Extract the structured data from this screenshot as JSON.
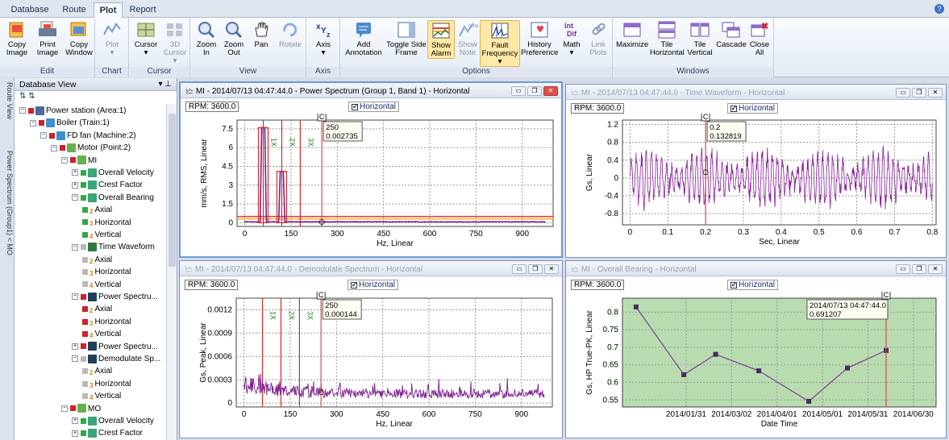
{
  "menu": {
    "tabs": [
      "Database",
      "Route",
      "Plot",
      "Report"
    ],
    "active": "Plot"
  },
  "ribbon": {
    "edit": {
      "label": "Edit",
      "buttons": [
        "Copy Image",
        "Print Image",
        "Copy Window"
      ]
    },
    "chart": {
      "label": "Chart",
      "buttons": [
        "Plot"
      ]
    },
    "cursor": {
      "label": "Cursor",
      "buttons": [
        "Cursor",
        "3D Cursor"
      ]
    },
    "view": {
      "label": "View",
      "buttons": [
        "Zoom In",
        "Zoom Out",
        "Pan",
        "Rotate"
      ]
    },
    "axis": {
      "label": "Axis",
      "buttons": [
        "Axis"
      ]
    },
    "options": {
      "label": "Options",
      "buttons": [
        "Add Annotation",
        "Toggle Side Frame",
        "Show Alarm",
        "Show Note",
        "Fault Frequency",
        "History Preference",
        "Math",
        "Link Plots"
      ]
    },
    "windows": {
      "label": "Windows",
      "buttons": [
        "Maximize",
        "Tile Horizontal",
        "Tile Vertical",
        "Cascade",
        "Close All"
      ]
    }
  },
  "side_tabs": [
    "Route View",
    "Power Spectrum (Group1) < MO"
  ],
  "db_view": {
    "title": "Database View",
    "toolbar": "⇅ ⇅",
    "tree": [
      {
        "label": "Power station (Area:1)",
        "level": 0,
        "icon": "area-icon"
      },
      {
        "label": "Boiler (Train:1)",
        "level": 1,
        "icon": "train-icon"
      },
      {
        "label": "FD fan (Machine:2)",
        "level": 2,
        "icon": "machine-icon"
      },
      {
        "label": "Motor (Point:2)",
        "level": 3,
        "icon": "point-icon"
      },
      {
        "label": "MI",
        "level": 4,
        "icon": "point-icon"
      },
      {
        "label": "Overall Velocity",
        "level": 5,
        "icon": "trend-icon"
      },
      {
        "label": "Crest Factor",
        "level": 5,
        "icon": "trend-icon"
      },
      {
        "label": "Overall Bearing",
        "level": 5,
        "icon": "trend-icon"
      },
      {
        "label": "Axial",
        "level": 6,
        "icon": "axis-icon"
      },
      {
        "label": "Horizontal",
        "level": 6,
        "icon": "axis-icon"
      },
      {
        "label": "Vertical",
        "level": 6,
        "icon": "axis-icon"
      },
      {
        "label": "Time Waveform",
        "level": 5,
        "icon": "waveform-icon"
      },
      {
        "label": "Axial",
        "level": 6,
        "icon": "axis-icon"
      },
      {
        "label": "Horizontal",
        "level": 6,
        "icon": "axis-icon"
      },
      {
        "label": "Vertical",
        "level": 6,
        "icon": "axis-icon"
      },
      {
        "label": "Power Spectru...",
        "level": 5,
        "icon": "spectrum-icon"
      },
      {
        "label": "Axial",
        "level": 6,
        "icon": "axis-icon"
      },
      {
        "label": "Horizontal",
        "level": 6,
        "icon": "axis-icon"
      },
      {
        "label": "Vertical",
        "level": 6,
        "icon": "axis-icon"
      },
      {
        "label": "Power Spectru...",
        "level": 5,
        "icon": "spectrum-icon"
      },
      {
        "label": "Demodulate Sp...",
        "level": 5,
        "icon": "spectrum-icon"
      },
      {
        "label": "Axial",
        "level": 6,
        "icon": "axis-icon"
      },
      {
        "label": "Horizontal",
        "level": 6,
        "icon": "axis-icon"
      },
      {
        "label": "Vertical",
        "level": 6,
        "icon": "axis-icon"
      },
      {
        "label": "MO",
        "level": 4,
        "icon": "point-icon"
      },
      {
        "label": "Overall Velocity",
        "level": 5,
        "icon": "trend-icon"
      },
      {
        "label": "Crest Factor",
        "level": 5,
        "icon": "trend-icon"
      }
    ],
    "axis_badges": {
      "Axial": "2",
      "Horizontal": "3",
      "Vertical": "4"
    }
  },
  "windows": [
    {
      "title": "MI - 2014/07/13 04:47:44.0 - Power Spectrum (Group 1, Band 1) - Horizontal",
      "rpm": "RPM: 3600.0",
      "check": "Horizontal",
      "active": true
    },
    {
      "title": "MI - 2014/07/13 04:47:44.0 - Time Waveform - Horizontal",
      "rpm": "RPM: 3600.0",
      "check": "Horizontal",
      "active": false
    },
    {
      "title": "MI - 2014/07/13 04:47:44.0 - Demodulate Spectrum - Horizontal",
      "rpm": "RPM: 3600.0",
      "check": "Horizontal",
      "active": false
    },
    {
      "title": "MI - Overall Bearing - Horizontal",
      "rpm": "RPM: 3600.0",
      "check": "Horizontal",
      "active": false
    }
  ],
  "chart_data": [
    {
      "type": "line",
      "title": "Power Spectrum",
      "xlabel": "Hz, Linear",
      "ylabel": "mm/s, RMS, Linear",
      "xlim": [
        -25,
        1000
      ],
      "ylim": [
        -0.3,
        8.2
      ],
      "xticks": [
        "0",
        "150",
        "300",
        "450",
        "600",
        "750",
        "900"
      ],
      "xtick_values": [
        0,
        150,
        300,
        450,
        600,
        750,
        900
      ],
      "yticks": [
        "0",
        "1.5",
        "3",
        "4.5",
        "6",
        "7.5"
      ],
      "ytick_values": [
        0,
        1.5,
        3,
        4.5,
        6,
        7.5
      ],
      "peaks": [
        {
          "x": 60,
          "y": 7.6
        },
        {
          "x": 120,
          "y": 4.1
        }
      ],
      "harmonic_labels": [
        "1X",
        "2X",
        "3X"
      ],
      "harmonic_x": [
        60,
        120,
        180
      ],
      "alarm_levels": [
        0.3,
        0.5
      ],
      "cursor_label": "C",
      "cursor_x": 250,
      "cursor_readout": [
        "250",
        "0.002735"
      ],
      "series_color": "#7b1f8f"
    },
    {
      "type": "line",
      "title": "Time Waveform",
      "xlabel": "Sec, Linear",
      "ylabel": "Gs, Linear",
      "xlim": [
        -0.02,
        0.81
      ],
      "ylim": [
        -1.05,
        1.3
      ],
      "xticks": [
        "0",
        "0.1",
        "0.2",
        "0.3",
        "0.4",
        "0.5",
        "0.6",
        "0.7",
        "0.8"
      ],
      "xtick_values": [
        0,
        0.1,
        0.2,
        0.3,
        0.4,
        0.5,
        0.6,
        0.7,
        0.8
      ],
      "yticks": [
        "-0.8",
        "-0.4",
        "0",
        "0.4",
        "0.8",
        "1.2"
      ],
      "ytick_values": [
        -0.8,
        -0.4,
        0,
        0.4,
        0.8,
        1.2
      ],
      "amplitude": 0.7,
      "cycles": 60,
      "cursor_label": "C",
      "cursor_x": 0.2,
      "cursor_readout": [
        "0.2",
        "0.132819"
      ],
      "series_color": "#8b1fa0"
    },
    {
      "type": "line",
      "title": "Demodulate Spectrum",
      "xlabel": "Hz, Linear",
      "ylabel": "Gs, Peak, Linear",
      "xlim": [
        -25,
        1000
      ],
      "ylim": [
        -5e-05,
        0.00135
      ],
      "xticks": [
        "0",
        "150",
        "300",
        "450",
        "600",
        "750",
        "900"
      ],
      "xtick_values": [
        0,
        150,
        300,
        450,
        600,
        750,
        900
      ],
      "yticks": [
        "0",
        "0.0003",
        "0.0006",
        "0.0009",
        "0.0012"
      ],
      "ytick_values": [
        0,
        0.0003,
        0.0006,
        0.0009,
        0.0012
      ],
      "harmonic_labels": [
        "1X",
        "2X",
        "3X"
      ],
      "harmonic_x": [
        60,
        120,
        180
      ],
      "cursor_label": "C",
      "cursor_x": 250,
      "cursor_readout": [
        "250",
        "0.000144"
      ],
      "series_color": "#7b1f8f"
    },
    {
      "type": "line",
      "title": "Overall Bearing",
      "xlabel": "Date Time",
      "ylabel": "Gs, HP True-PK, Linear",
      "ylim": [
        0.53,
        0.84
      ],
      "categories": [
        "2014/01/31",
        "2014/03/02",
        "2014/04/01",
        "2014/05/01",
        "2014/05/31",
        "2014/06/30"
      ],
      "category_positions": [
        1,
        2,
        3,
        4,
        5,
        6
      ],
      "xlim": [
        -0.4,
        6.5
      ],
      "yticks": [
        "0.55",
        "0.6",
        "0.65",
        "0.7",
        "0.75",
        "0.8"
      ],
      "ytick_values": [
        0.55,
        0.6,
        0.65,
        0.7,
        0.75,
        0.8
      ],
      "x": [
        -0.1,
        0.95,
        1.65,
        2.6,
        3.7,
        4.55,
        5.4
      ],
      "values": [
        0.815,
        0.622,
        0.68,
        0.633,
        0.546,
        0.641,
        0.691
      ],
      "cursor_label": "C",
      "cursor_x": 5.4,
      "cursor_readout": [
        "2014/07/13 04:47:44.0",
        "0.691207"
      ],
      "background": "#b8dcb0",
      "series_color": "#7b3f92"
    }
  ]
}
